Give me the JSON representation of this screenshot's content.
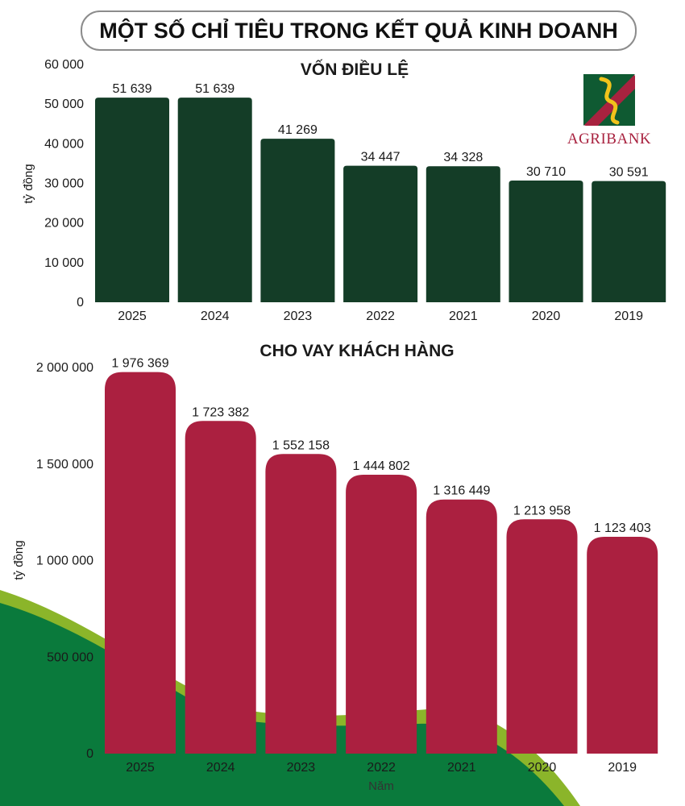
{
  "page": {
    "title": "MỘT SỐ CHỈ TIÊU TRONG KẾT QUẢ KINH DOANH",
    "colors": {
      "capital_bar": "#143d27",
      "loan_bar": "#ab2040",
      "hill_green": "#0a7a3c",
      "hill_lime": "#8bb52a",
      "title_border": "#8c8c8c"
    }
  },
  "logo": {
    "text": "AGRIBANK",
    "icon": "agribank-logo-icon"
  },
  "chart_data": [
    {
      "type": "bar",
      "title": "VỐN ĐIỀU LỆ",
      "categories": [
        "2025",
        "2024",
        "2023",
        "2022",
        "2021",
        "2020",
        "2019"
      ],
      "values": [
        51639,
        51639,
        41269,
        34447,
        34328,
        30710,
        30591
      ],
      "value_labels": [
        "51 639",
        "51 639",
        "41 269",
        "34 447",
        "34 328",
        "30 710",
        "30 591"
      ],
      "ylabel": "tỷ đồng",
      "xlabel": "",
      "ylim": [
        0,
        60000
      ],
      "yticks": [
        0,
        10000,
        20000,
        30000,
        40000,
        50000,
        60000
      ],
      "ytick_labels": [
        "0",
        "10 000",
        "20 000",
        "30 000",
        "40 000",
        "50 000",
        "60 000"
      ],
      "grid": false,
      "color": "#143d27"
    },
    {
      "type": "bar",
      "title": "CHO VAY KHÁCH HÀNG",
      "categories": [
        "2025",
        "2024",
        "2023",
        "2022",
        "2021",
        "2020",
        "2019"
      ],
      "values": [
        1976369,
        1723382,
        1552158,
        1444802,
        1316449,
        1213958,
        1123403
      ],
      "value_labels": [
        "1 976 369",
        "1 723 382",
        "1 552 158",
        "1 444 802",
        "1 316 449",
        "1 213 958",
        "1 123 403"
      ],
      "ylabel": "tỷ đồng",
      "xlabel": "Năm",
      "ylim": [
        0,
        2000000
      ],
      "yticks": [
        0,
        500000,
        1000000,
        1500000,
        2000000
      ],
      "ytick_labels": [
        "0",
        "500 000",
        "1 000 000",
        "1 500 000",
        "2 000 000"
      ],
      "grid": false,
      "color": "#ab2040"
    }
  ]
}
